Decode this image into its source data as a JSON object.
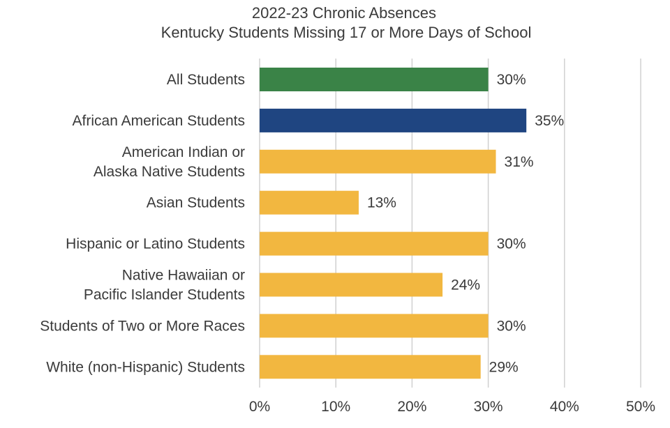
{
  "chart_data": {
    "type": "bar",
    "orientation": "horizontal",
    "title": [
      "2022-23 Chronic Absences",
      "Kentucky Students Missing 17 or More Days of School"
    ],
    "categories": [
      [
        "All Students"
      ],
      [
        "African American Students"
      ],
      [
        "American Indian or",
        "Alaska Native Students"
      ],
      [
        "Asian Students"
      ],
      [
        "Hispanic or Latino Students"
      ],
      [
        "Native Hawaiian or",
        "Pacific Islander Students"
      ],
      [
        "Students of Two or More Races"
      ],
      [
        "White (non-Hispanic) Students"
      ]
    ],
    "values": [
      30,
      35,
      31,
      13,
      30,
      24,
      30,
      29
    ],
    "value_labels": [
      "30%",
      "35%",
      "31%",
      "13%",
      "30%",
      "24%",
      "30%",
      "29%"
    ],
    "bar_colors": [
      "#3a8347",
      "#1f4581",
      "#f2b740",
      "#f2b740",
      "#f2b740",
      "#f2b740",
      "#f2b740",
      "#f2b740"
    ],
    "xlim": [
      0,
      50
    ],
    "x_ticks": [
      0,
      10,
      20,
      30,
      40,
      50
    ],
    "x_tick_labels": [
      "0%",
      "10%",
      "20%",
      "30%",
      "40%",
      "50%"
    ],
    "grid": true,
    "legend": "none"
  }
}
